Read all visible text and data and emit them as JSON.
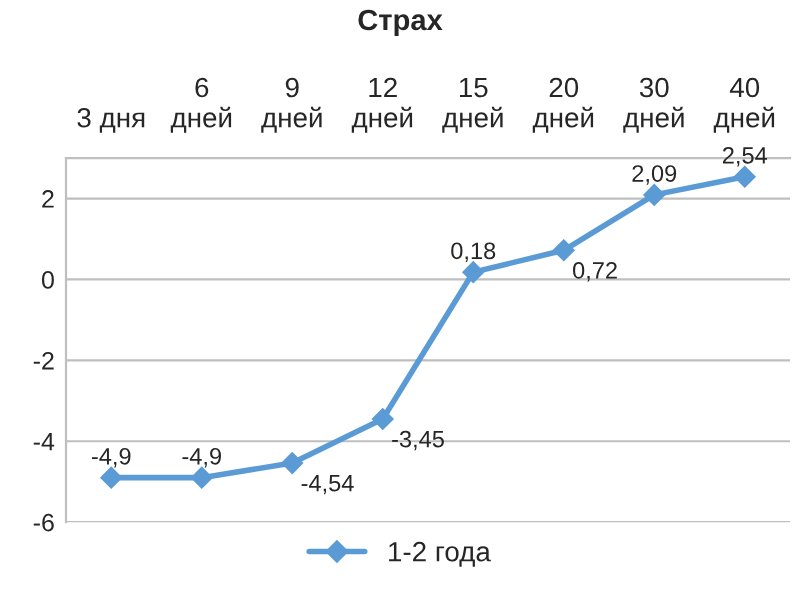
{
  "chart_data": {
    "type": "line",
    "title": "Страх",
    "categories": [
      "3 дня",
      "6 дней",
      "9 дней",
      "12 дней",
      "15 дней",
      "20 дней",
      "30 дней",
      "40 дней"
    ],
    "series": [
      {
        "name": "1-2 года",
        "color": "#5b9bd5",
        "values": [
          -4.9,
          -4.9,
          -4.54,
          -3.45,
          0.18,
          0.72,
          2.09,
          2.54
        ],
        "value_labels": [
          "-4,9",
          "-4,9",
          "-4,54",
          "-3,45",
          "0,18",
          "0,72",
          "2,09",
          "2,54"
        ]
      }
    ],
    "ylim": [
      -6,
      3
    ],
    "yticks": [
      2,
      0,
      -2,
      -4,
      -6
    ],
    "grid": "y",
    "legend": "bottom",
    "marker": "diamond"
  }
}
